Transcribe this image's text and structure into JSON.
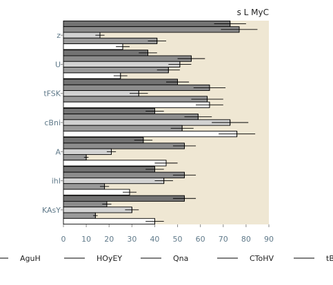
{
  "chart_data": {
    "type": "bar",
    "orientation": "horizontal",
    "title": "s L MyC",
    "xlabel": "",
    "ylabel": "",
    "xlim": [
      0,
      90
    ],
    "xticks": [
      0,
      10,
      20,
      30,
      40,
      50,
      60,
      70,
      80,
      90
    ],
    "grid": false,
    "plot_background": "#efe7d3",
    "legend_placement": "bottom",
    "categories": [
      "z",
      "U",
      "tFSK",
      "cBni",
      "A",
      "ihI",
      "KAsY"
    ],
    "series": [
      {
        "name": "AguH",
        "color": "#737373",
        "values": [
          73,
          37,
          50,
          40,
          35,
          40,
          53
        ],
        "errors": [
          7,
          4,
          5,
          4,
          4,
          4,
          5
        ]
      },
      {
        "name": "HOyEY",
        "color": "#8c8c8c",
        "values": [
          77,
          56,
          64,
          59,
          53,
          53,
          19
        ],
        "errors": [
          8,
          6,
          7,
          6,
          5,
          5,
          2
        ]
      },
      {
        "name": "Qna",
        "color": "#d2d2d2",
        "values": [
          16,
          51,
          33,
          73,
          21,
          44,
          30
        ],
        "errors": [
          2,
          5,
          4,
          8,
          2,
          4,
          3
        ]
      },
      {
        "name": "CToHV",
        "color": "#999999",
        "values": [
          41,
          46,
          63,
          52,
          10,
          18,
          14
        ],
        "errors": [
          4,
          5,
          7,
          5,
          1,
          2,
          1
        ]
      },
      {
        "name": "tBn",
        "color": "#ffffff",
        "values": [
          26,
          25,
          64,
          76,
          45,
          29,
          40
        ],
        "errors": [
          3,
          3,
          6,
          8,
          5,
          3,
          4
        ]
      }
    ]
  }
}
